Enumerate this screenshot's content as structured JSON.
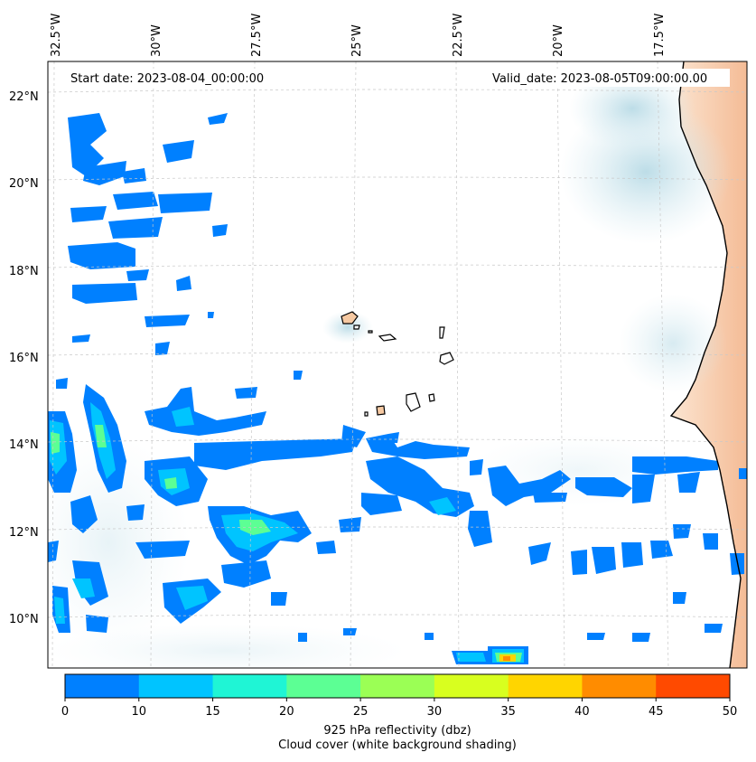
{
  "header": {
    "start_date": "Start date: 2023-08-04_00:00:00",
    "valid_date": "Valid_date: 2023-08-05T09:00:00.00"
  },
  "axes": {
    "lon_labels": [
      "32.5°W",
      "30°W",
      "27.5°W",
      "25°W",
      "22.5°W",
      "20°W",
      "17.5°W"
    ],
    "lat_labels": [
      "22°N",
      "20°N",
      "18°N",
      "16°N",
      "14°N",
      "12°N",
      "10°N"
    ]
  },
  "colorbar": {
    "ticks": [
      "0",
      "10",
      "15",
      "20",
      "25",
      "30",
      "35",
      "40",
      "45",
      "50"
    ],
    "colors": [
      "#0080ff",
      "#00c4ff",
      "#1ff5d5",
      "#5cff94",
      "#9bff55",
      "#d8ff1f",
      "#ffd500",
      "#ff8c00",
      "#ff4a00"
    ],
    "label_line1": "925 hPa reflectivity (dbz)",
    "label_line2": "Cloud cover (white background shading)"
  },
  "legend_colors": {
    "land": "#f6c9a2",
    "cloud_cover": "#cfe7ee",
    "gridline": "#c8c8c8"
  }
}
